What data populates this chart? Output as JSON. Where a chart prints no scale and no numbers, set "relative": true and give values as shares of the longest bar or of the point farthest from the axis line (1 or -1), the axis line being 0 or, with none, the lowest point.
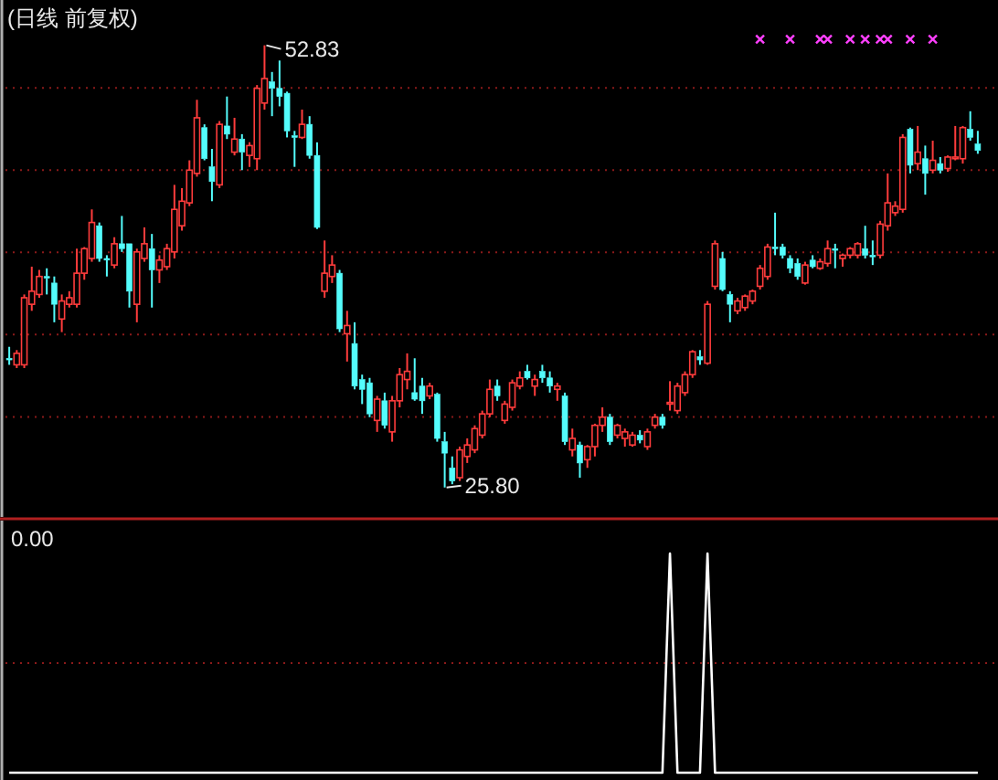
{
  "chart_data": [
    {
      "type": "candlestick",
      "title": "(日线 前复权)",
      "categories": [
        null,
        null,
        null,
        null,
        null,
        null,
        null,
        null,
        null,
        null,
        null,
        null,
        null,
        null,
        null,
        null,
        null,
        null,
        null,
        null,
        null,
        null,
        null,
        null,
        null,
        null,
        null,
        null,
        null,
        null,
        null,
        null,
        null,
        null,
        null,
        null,
        null,
        null,
        null,
        null,
        null,
        null,
        null,
        null,
        null,
        null,
        null,
        null,
        null,
        null,
        null,
        null,
        null,
        null,
        null,
        null,
        null,
        null,
        null,
        null,
        null,
        null,
        null,
        null,
        null,
        null,
        null,
        null,
        null,
        null,
        null,
        null,
        null,
        null,
        null,
        null,
        null,
        null,
        null,
        null,
        null,
        null,
        null,
        null,
        null,
        null,
        null,
        null,
        null,
        null,
        null,
        null,
        null,
        null,
        null,
        null,
        null,
        null,
        null,
        null,
        null,
        null,
        null,
        null,
        null,
        null,
        null,
        null,
        null,
        null,
        null,
        null,
        null,
        null,
        null,
        null,
        null,
        null,
        null,
        null,
        null,
        null,
        null,
        null,
        null,
        null,
        null,
        null,
        null,
        null
      ],
      "ohlc": [
        [
          33.7,
          34.4,
          33.3,
          33.6
        ],
        [
          33.3,
          34.2,
          33.1,
          34.0
        ],
        [
          33.3,
          37.6,
          33.1,
          37.4
        ],
        [
          37.0,
          39.3,
          36.6,
          37.8
        ],
        [
          37.6,
          39.1,
          37.4,
          38.7
        ],
        [
          38.7,
          39.2,
          37.6,
          38.6
        ],
        [
          38.3,
          38.7,
          35.9,
          37.0
        ],
        [
          36.1,
          37.6,
          35.3,
          37.2
        ],
        [
          37.0,
          37.8,
          36.8,
          37.4
        ],
        [
          37.0,
          40.4,
          36.8,
          38.9
        ],
        [
          38.9,
          40.5,
          38.5,
          40.4
        ],
        [
          39.8,
          42.8,
          39.6,
          42.0
        ],
        [
          41.8,
          42.0,
          39.6,
          39.8
        ],
        [
          39.8,
          40.0,
          38.7,
          39.7
        ],
        [
          39.4,
          41.1,
          39.2,
          40.7
        ],
        [
          40.7,
          42.4,
          40.2,
          40.4
        ],
        [
          40.7,
          40.7,
          36.8,
          37.8
        ],
        [
          37.0,
          40.4,
          35.9,
          40.2
        ],
        [
          39.8,
          41.7,
          39.6,
          40.7
        ],
        [
          40.4,
          41.3,
          36.8,
          39.1
        ],
        [
          39.1,
          40.0,
          38.3,
          39.7
        ],
        [
          39.3,
          40.7,
          39.1,
          40.4
        ],
        [
          40.2,
          44.3,
          39.8,
          42.8
        ],
        [
          41.8,
          44.1,
          41.5,
          43.3
        ],
        [
          43.2,
          45.8,
          43.0,
          45.2
        ],
        [
          45.0,
          49.5,
          44.8,
          48.4
        ],
        [
          47.8,
          48.0,
          45.8,
          45.9
        ],
        [
          45.4,
          46.5,
          43.3,
          44.5
        ],
        [
          44.3,
          48.2,
          44.1,
          48.0
        ],
        [
          47.9,
          49.7,
          47.1,
          47.4
        ],
        [
          46.3,
          48.4,
          46.1,
          47.1
        ],
        [
          47.1,
          47.4,
          45.2,
          46.3
        ],
        [
          46.1,
          46.9,
          45.4,
          46.7
        ],
        [
          45.9,
          50.4,
          45.2,
          50.2
        ],
        [
          49.3,
          52.83,
          48.9,
          50.8
        ],
        [
          50.6,
          51.2,
          48.5,
          50.2
        ],
        [
          50.2,
          51.9,
          49.1,
          49.7
        ],
        [
          49.9,
          50.0,
          47.2,
          47.6
        ],
        [
          47.3,
          47.6,
          45.4,
          47.2
        ],
        [
          47.2,
          48.9,
          47.1,
          48.0
        ],
        [
          48.0,
          48.5,
          45.9,
          46.1
        ],
        [
          46.1,
          46.9,
          41.6,
          41.7
        ],
        [
          37.8,
          40.9,
          37.4,
          38.9
        ],
        [
          38.7,
          40.0,
          38.3,
          39.4
        ],
        [
          38.9,
          39.1,
          35.3,
          35.5
        ],
        [
          35.2,
          36.6,
          33.5,
          35.7
        ],
        [
          34.6,
          35.9,
          31.8,
          32.0
        ],
        [
          32.4,
          32.7,
          30.9,
          31.8
        ],
        [
          32.2,
          32.5,
          30.1,
          30.3
        ],
        [
          29.9,
          31.4,
          29.2,
          31.2
        ],
        [
          31.1,
          31.6,
          29.4,
          29.6
        ],
        [
          29.2,
          31.4,
          28.6,
          31.1
        ],
        [
          31.1,
          33.1,
          30.7,
          32.7
        ],
        [
          32.4,
          34.0,
          31.8,
          32.9
        ],
        [
          31.6,
          33.7,
          31.1,
          31.2
        ],
        [
          32.0,
          32.5,
          30.3,
          31.1
        ],
        [
          31.4,
          32.2,
          31.2,
          32.0
        ],
        [
          31.5,
          31.6,
          28.6,
          28.8
        ],
        [
          28.6,
          29.2,
          25.8,
          27.9
        ],
        [
          27.0,
          27.7,
          26.0,
          26.2
        ],
        [
          26.4,
          28.3,
          26.2,
          28.1
        ],
        [
          27.7,
          28.8,
          27.3,
          28.4
        ],
        [
          28.1,
          29.6,
          27.9,
          29.4
        ],
        [
          29.0,
          30.5,
          28.8,
          30.3
        ],
        [
          30.3,
          32.4,
          30.1,
          31.8
        ],
        [
          32.0,
          32.4,
          31.1,
          31.4
        ],
        [
          29.9,
          31.1,
          29.7,
          30.9
        ],
        [
          30.7,
          32.4,
          30.5,
          32.2
        ],
        [
          32.0,
          32.9,
          31.8,
          32.5
        ],
        [
          32.9,
          33.3,
          32.4,
          32.5
        ],
        [
          32.0,
          32.7,
          31.4,
          32.4
        ],
        [
          32.9,
          33.3,
          32.2,
          32.5
        ],
        [
          32.5,
          32.9,
          31.6,
          32.0
        ],
        [
          31.8,
          32.2,
          31.1,
          32.0
        ],
        [
          31.4,
          31.6,
          28.4,
          28.6
        ],
        [
          28.1,
          29.4,
          27.7,
          28.8
        ],
        [
          28.4,
          28.6,
          26.4,
          27.3
        ],
        [
          27.5,
          28.4,
          27.0,
          28.3
        ],
        [
          28.3,
          29.7,
          27.7,
          29.6
        ],
        [
          29.6,
          30.7,
          29.2,
          30.1
        ],
        [
          30.1,
          30.3,
          28.4,
          28.6
        ],
        [
          29.0,
          29.7,
          28.8,
          29.6
        ],
        [
          28.8,
          29.4,
          28.3,
          29.2
        ],
        [
          28.4,
          29.2,
          28.3,
          29.0
        ],
        [
          29.0,
          29.3,
          28.5,
          28.7
        ],
        [
          28.3,
          29.4,
          28.1,
          29.2
        ],
        [
          29.6,
          30.3,
          29.4,
          30.1
        ],
        [
          30.1,
          30.3,
          29.4,
          29.6
        ],
        [
          30.9,
          32.3,
          30.5,
          31.0
        ],
        [
          30.5,
          32.2,
          30.3,
          32.0
        ],
        [
          31.6,
          32.9,
          31.4,
          32.7
        ],
        [
          32.7,
          34.2,
          32.5,
          34.1
        ],
        [
          33.8,
          34.2,
          33.3,
          33.6
        ],
        [
          33.4,
          37.2,
          33.3,
          37.0
        ],
        [
          38.1,
          40.9,
          37.9,
          40.7
        ],
        [
          39.8,
          40.2,
          37.8,
          37.9
        ],
        [
          37.6,
          37.8,
          35.9,
          37.0
        ],
        [
          36.6,
          37.4,
          36.4,
          37.2
        ],
        [
          36.8,
          37.6,
          36.6,
          37.5
        ],
        [
          37.2,
          37.9,
          37.0,
          37.8
        ],
        [
          38.1,
          39.4,
          37.9,
          39.2
        ],
        [
          38.7,
          40.7,
          38.5,
          40.5
        ],
        [
          40.5,
          42.6,
          40.0,
          40.4
        ],
        [
          40.5,
          40.7,
          39.8,
          40.0
        ],
        [
          39.8,
          40.0,
          38.9,
          39.2
        ],
        [
          39.5,
          39.8,
          38.5,
          38.7
        ],
        [
          38.3,
          39.6,
          38.2,
          39.4
        ],
        [
          39.7,
          40.0,
          39.2,
          39.3
        ],
        [
          39.2,
          39.8,
          39.1,
          39.6
        ],
        [
          39.5,
          40.9,
          39.3,
          40.4
        ],
        [
          40.4,
          40.7,
          39.2,
          40.3
        ],
        [
          39.8,
          40.1,
          39.3,
          40.0
        ],
        [
          40.0,
          40.5,
          39.8,
          40.4
        ],
        [
          40.0,
          40.8,
          39.8,
          40.7
        ],
        [
          40.4,
          41.8,
          39.8,
          40.0
        ],
        [
          40.0,
          40.9,
          39.4,
          39.9
        ],
        [
          40.0,
          42.1,
          39.8,
          41.9
        ],
        [
          41.8,
          45.0,
          41.5,
          43.2
        ],
        [
          42.6,
          43.3,
          42.4,
          43.0
        ],
        [
          42.8,
          47.4,
          42.6,
          47.2
        ],
        [
          47.7,
          47.8,
          45.0,
          45.5
        ],
        [
          45.6,
          47.9,
          45.2,
          46.3
        ],
        [
          45.9,
          46.7,
          43.7,
          45.0
        ],
        [
          45.2,
          47.0,
          45.0,
          45.8
        ],
        [
          45.6,
          46.0,
          45.0,
          45.2
        ],
        [
          45.3,
          46.1,
          45.1,
          46.0
        ],
        [
          45.9,
          47.9,
          45.8,
          46.0
        ],
        [
          45.9,
          47.9,
          45.6,
          47.8
        ],
        [
          47.7,
          48.8,
          47.0,
          47.2
        ],
        [
          46.8,
          47.6,
          46.2,
          46.4
        ]
      ],
      "series": [
        {
          "type": "scatter",
          "marker": "cross",
          "color": "#ff40ff",
          "values": [
            null,
            null,
            null,
            null,
            null,
            null,
            null,
            null,
            null,
            null,
            null,
            null,
            null,
            null,
            null,
            null,
            null,
            null,
            null,
            null,
            null,
            null,
            null,
            null,
            null,
            null,
            null,
            null,
            null,
            null,
            null,
            null,
            null,
            null,
            null,
            null,
            null,
            null,
            null,
            null,
            null,
            null,
            null,
            null,
            null,
            null,
            null,
            null,
            null,
            null,
            null,
            null,
            null,
            null,
            null,
            null,
            null,
            null,
            null,
            null,
            null,
            null,
            null,
            null,
            null,
            null,
            null,
            null,
            null,
            null,
            null,
            null,
            null,
            null,
            null,
            null,
            null,
            null,
            null,
            null,
            null,
            null,
            null,
            null,
            null,
            null,
            null,
            null,
            null,
            null,
            null,
            null,
            null,
            null,
            null,
            null,
            null,
            null,
            null,
            null,
            53.2,
            null,
            null,
            null,
            53.2,
            null,
            null,
            null,
            53.2,
            53.2,
            null,
            null,
            53.2,
            null,
            53.2,
            null,
            53.2,
            53.2,
            null,
            null,
            53.2,
            null,
            null,
            53.2,
            null,
            null,
            null,
            null,
            null,
            null
          ]
        }
      ],
      "ylim": [
        24.0,
        55.6
      ],
      "yticks": [
        {
          "value": 30.12,
          "label": null
        },
        {
          "value": 35.15,
          "label": null
        },
        {
          "value": 40.17,
          "label": null
        },
        {
          "value": 45.2,
          "label": null
        },
        {
          "value": 50.23,
          "label": null
        }
      ],
      "grid": "y",
      "annotations": [
        "52.83",
        "25.80"
      ]
    },
    {
      "type": "line",
      "relative": true,
      "categories": [
        null,
        null,
        null,
        null,
        null,
        null,
        null,
        null,
        null,
        null,
        null,
        null,
        null,
        null,
        null,
        null,
        null,
        null,
        null,
        null,
        null,
        null,
        null,
        null,
        null,
        null,
        null,
        null,
        null,
        null,
        null,
        null,
        null,
        null,
        null,
        null,
        null,
        null,
        null,
        null,
        null,
        null,
        null,
        null,
        null,
        null,
        null,
        null,
        null,
        null,
        null,
        null,
        null,
        null,
        null,
        null,
        null,
        null,
        null,
        null,
        null,
        null,
        null,
        null,
        null,
        null,
        null,
        null,
        null,
        null,
        null,
        null,
        null,
        null,
        null,
        null,
        null,
        null,
        null,
        null,
        null,
        null,
        null,
        null,
        null,
        null,
        null,
        null,
        null,
        null,
        null,
        null,
        null,
        null,
        null,
        null,
        null,
        null,
        null,
        null,
        null,
        null,
        null,
        null,
        null,
        null,
        null,
        null,
        null,
        null,
        null,
        null,
        null,
        null,
        null,
        null,
        null,
        null,
        null,
        null,
        null,
        null,
        null,
        null,
        null,
        null,
        null,
        null,
        null,
        null
      ],
      "series": [
        {
          "color": "#ffffff",
          "values": [
            0,
            0,
            0,
            0,
            0,
            0,
            0,
            0,
            0,
            0,
            0,
            0,
            0,
            0,
            0,
            0,
            0,
            0,
            0,
            0,
            0,
            0,
            0,
            0,
            0,
            0,
            0,
            0,
            0,
            0,
            0,
            0,
            0,
            0,
            0,
            0,
            0,
            0,
            0,
            0,
            0,
            0,
            0,
            0,
            0,
            0,
            0,
            0,
            0,
            0,
            0,
            0,
            0,
            0,
            0,
            0,
            0,
            0,
            0,
            0,
            0,
            0,
            0,
            0,
            0,
            0,
            0,
            0,
            0,
            0,
            0,
            0,
            0,
            0,
            0,
            0,
            0,
            0,
            0,
            0,
            0,
            0,
            0,
            0,
            0,
            0,
            0,
            0,
            1,
            0,
            0,
            0,
            0,
            1,
            0,
            0,
            0,
            0,
            0,
            0,
            0,
            0,
            0,
            0,
            0,
            0,
            0,
            0,
            0,
            0,
            0,
            0,
            0,
            0,
            0,
            0,
            0,
            0,
            0,
            0,
            0,
            0,
            0,
            0,
            0,
            0,
            0,
            0,
            0,
            0
          ]
        }
      ],
      "ref_lines": [
        {
          "axis": "y",
          "value": 0.5,
          "color": "#8b1a1a",
          "line_style": "dotted"
        }
      ],
      "annotations": [
        "0.00"
      ]
    }
  ]
}
